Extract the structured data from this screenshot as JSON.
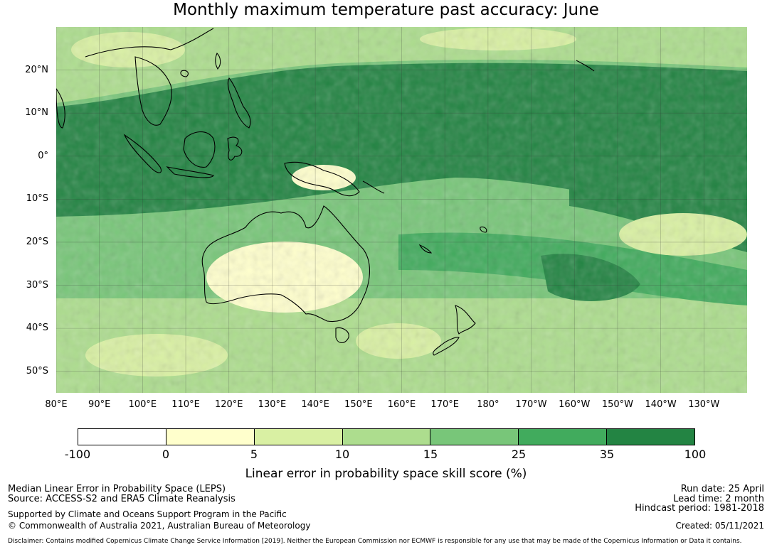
{
  "title": "Monthly maximum temperature past accuracy: June",
  "map": {
    "lat_labels": [
      "20°N",
      "10°N",
      "0°",
      "10°S",
      "20°S",
      "30°S",
      "40°S",
      "50°S"
    ],
    "lon_labels": [
      "80°E",
      "90°E",
      "100°E",
      "110°E",
      "120°E",
      "130°E",
      "140°E",
      "150°E",
      "160°E",
      "170°E",
      "180°",
      "170°W",
      "160°W",
      "150°W",
      "140°W",
      "130°W"
    ],
    "extent": {
      "lon_min": 80,
      "lon_max": 240,
      "lat_min": -55,
      "lat_max": 30
    }
  },
  "colorbar": {
    "ticks": [
      "-100",
      "0",
      "5",
      "10",
      "15",
      "25",
      "35",
      "100"
    ],
    "colors": [
      "#ffffff",
      "#ffffcc",
      "#d9f0a3",
      "#addd8e",
      "#78c679",
      "#41ab5d",
      "#238443"
    ],
    "label": "Linear error in probability space skill score (%)"
  },
  "footer": {
    "line1": "Median Linear Error in Probability Space (LEPS)",
    "line2": "Source: ACCESS-S2 and ERA5 Climate Reanalysis",
    "line3": "Supported by Climate and Oceans Support Program in the Pacific",
    "line4": "© Commonwealth of Australia 2021, Australian Bureau of Meteorology",
    "run_date": "Run date: 25 April",
    "lead_time": "Lead time: 2 month",
    "hindcast": "Hindcast period: 1981-2018",
    "created": "Created: 05/11/2021",
    "disclaimer": "Disclaimer: Contains modified Copernicus Climate Change Service Information [2019]. Neither the European Commission nor ECMWF is responsible for any use that may be made of the Copernicus Information or Data it contains."
  }
}
